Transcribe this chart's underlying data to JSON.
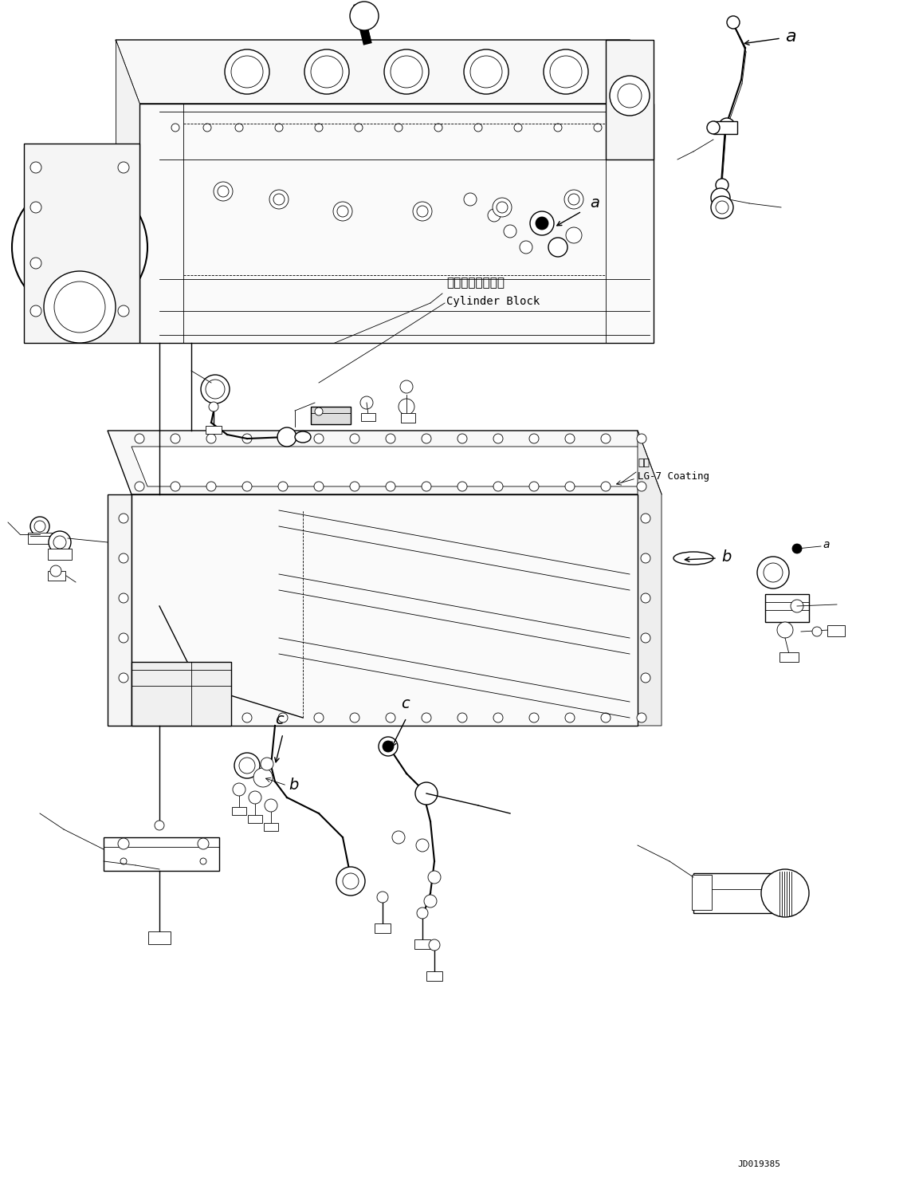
{
  "bg_color": "#ffffff",
  "line_color": "#000000",
  "fig_width": 11.43,
  "fig_height": 14.91,
  "dpi": 100,
  "title_text": "JD019385",
  "label_a": "a",
  "label_b": "b",
  "label_c": "c",
  "cylinder_block_ja": "シリンダブロック",
  "cylinder_block_en": "Cylinder Block",
  "coating_ja": "塗布",
  "coating_en": "LG-7 Coating"
}
